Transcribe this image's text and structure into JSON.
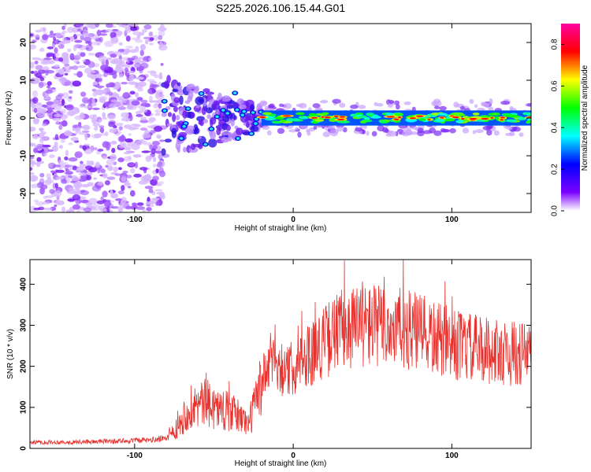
{
  "title": "S225.2026.106.15.44.G01",
  "chart_data": [
    {
      "type": "heatmap",
      "title": "",
      "xlabel": "Height of straight line (km)",
      "ylabel": "Frequency (Hz)",
      "xlim": [
        -166,
        150
      ],
      "ylim": [
        -25,
        25
      ],
      "x_ticks": [
        "-100",
        "0",
        "100"
      ],
      "y_ticks": [
        "20",
        "10",
        "0",
        "-10",
        "-20"
      ],
      "colorbar": {
        "label": "Normalized spectral amplitude",
        "range": [
          0.0,
          0.9
        ],
        "ticks": [
          "0.0",
          "0.2",
          "0.4",
          "0.6",
          "0.8"
        ]
      },
      "regions": [
        {
          "name": "broadband noise",
          "x_range": [
            -166,
            -82
          ],
          "y_range": [
            -25,
            25
          ],
          "amplitude": 0.15
        },
        {
          "name": "emerging signal",
          "x_range": [
            -82,
            -20
          ],
          "y_range": [
            -15,
            10
          ],
          "amplitude": 0.4
        },
        {
          "name": "tracked signal",
          "x_range": [
            -20,
            150
          ],
          "y_center": 0,
          "y_halfwidth": 2,
          "amplitude": 0.85
        }
      ]
    },
    {
      "type": "line",
      "title": "",
      "xlabel": "Height of straight line (km)",
      "ylabel": "SNR (10 * v/v)",
      "xlim": [
        -166,
        150
      ],
      "ylim": [
        0,
        460
      ],
      "x_ticks": [
        "-100",
        "0",
        "100"
      ],
      "y_ticks": [
        "0",
        "100",
        "200",
        "300",
        "400"
      ],
      "series": [
        {
          "name": "SNR",
          "color": "#e8302c",
          "x": [
            -166,
            -140,
            -110,
            -90,
            -80,
            -72,
            -65,
            -55,
            -45,
            -35,
            -28,
            -20,
            -12,
            -5,
            0,
            10,
            20,
            30,
            40,
            50,
            60,
            70,
            80,
            90,
            100,
            110,
            120,
            130,
            140,
            150
          ],
          "y": [
            15,
            15,
            18,
            20,
            25,
            60,
            100,
            110,
            95,
            80,
            60,
            160,
            230,
            180,
            200,
            230,
            260,
            290,
            300,
            300,
            295,
            290,
            280,
            265,
            255,
            245,
            240,
            235,
            230,
            230
          ]
        }
      ]
    }
  ]
}
